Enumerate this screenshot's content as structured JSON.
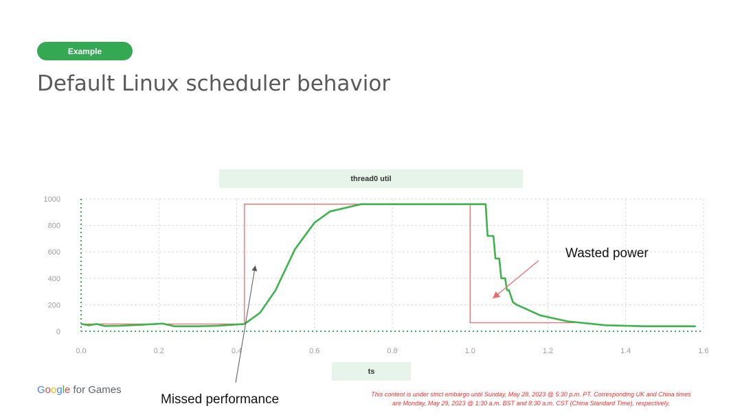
{
  "badge": {
    "label": "Example",
    "color": "#34a853"
  },
  "slide_title": "Default Linux scheduler behavior",
  "chart_data": {
    "type": "line",
    "title": "thread0 util",
    "xlabel": "ts",
    "ylabel": "",
    "xlim": [
      0,
      1.6
    ],
    "ylim": [
      0,
      1000
    ],
    "x_ticks": [
      0,
      0.2,
      0.4,
      0.6,
      0.8,
      1.0,
      1.2,
      1.4,
      1.6
    ],
    "x_tick_labels": [
      "0.0",
      "0.2",
      "0.4",
      "0.6",
      "0.8",
      "1.0",
      "1.2",
      "1.4",
      "1.6"
    ],
    "y_ticks": [
      0,
      200,
      400,
      600,
      800,
      1000
    ],
    "y_tick_labels": [
      "0",
      "200",
      "400",
      "600",
      "800",
      "1000"
    ],
    "grid": true,
    "legend": "none",
    "series": [
      {
        "color": "#3cb44b",
        "x": [
          0,
          0.02,
          0.04,
          0.06,
          0.1,
          0.15,
          0.21,
          0.24,
          0.3,
          0.35,
          0.42,
          0.46,
          0.5,
          0.55,
          0.6,
          0.64,
          0.72,
          0.8,
          0.9,
          1.04,
          1.045,
          1.06,
          1.065,
          1.075,
          1.08,
          1.09,
          1.095,
          1.1,
          1.11,
          1.12,
          1.18,
          1.25,
          1.35,
          1.45,
          1.58
        ],
        "y": [
          55,
          45,
          55,
          40,
          42,
          48,
          58,
          38,
          38,
          42,
          55,
          140,
          310,
          620,
          820,
          905,
          960,
          960,
          960,
          960,
          720,
          720,
          550,
          550,
          400,
          400,
          310,
          310,
          220,
          200,
          120,
          75,
          45,
          38,
          38
        ]
      },
      {
        "color": "#ef6b6b",
        "x": [
          0,
          0.42,
          0.42,
          1.0,
          1.0,
          1.25,
          1.27
        ],
        "y": [
          55,
          55,
          960,
          960,
          65,
          65,
          65
        ]
      }
    ]
  },
  "annotations": {
    "missed": "Missed performance",
    "wasted": "Wasted power"
  },
  "footer": {
    "logo_g": [
      "G",
      "o",
      "o",
      "g",
      "l",
      "e"
    ],
    "logo_rest": " for Games",
    "embargo_line1": "This content is under strict embargo until Sunday, May 28, 2023 @ 5:30 p.m. PT. Corresponding UK and China times",
    "embargo_line2": "are Monday, May 29, 2023 @ 1:30 a.m. BST and 8:30 a.m. CST (China Standard Time), respectively."
  },
  "colors": {
    "title_bar_bg": "#e6f4ea",
    "grid": "#d9d9d9",
    "axis_dots": "#34a853",
    "arrow_gray": "#555555",
    "arrow_red": "#ef6b6b"
  }
}
